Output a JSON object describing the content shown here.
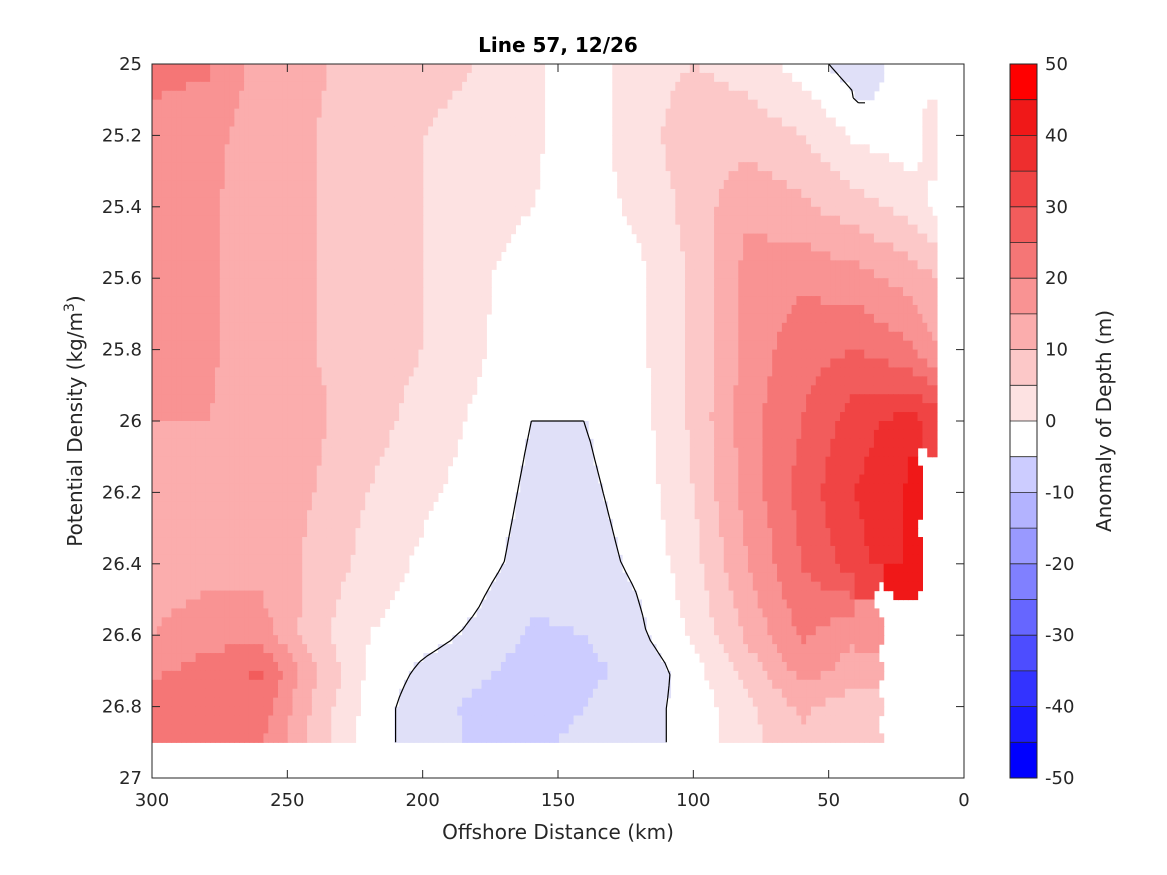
{
  "chart_data": {
    "type": "heatmap",
    "title": "Line 57, 12/26",
    "xlabel": "Offshore Distance (km)",
    "ylabel": "Potential Density (kg/m",
    "ylabel_sup": "3",
    "ylabel_end": ")",
    "xlim": [
      300,
      0
    ],
    "ylim": [
      25,
      27
    ],
    "x_reversed": true,
    "y_reversed": true,
    "grid": false,
    "x_ticks": [
      300,
      250,
      200,
      150,
      100,
      50,
      0
    ],
    "x_tick_labels": [
      "300",
      "250",
      "200",
      "150",
      "100",
      "50",
      "0"
    ],
    "y_ticks": [
      25,
      25.2,
      25.4,
      25.6,
      25.8,
      26,
      26.2,
      26.4,
      26.6,
      26.8,
      27
    ],
    "y_tick_labels": [
      "25",
      "25.2",
      "25.4",
      "25.6",
      "25.8",
      "26",
      "26.2",
      "26.4",
      "26.6",
      "26.8",
      "27"
    ],
    "colorbar": {
      "label": "Anomaly of Depth (m)",
      "range": [
        -50,
        50
      ],
      "ticks": [
        50,
        40,
        30,
        20,
        10,
        0,
        -10,
        -20,
        -30,
        -40,
        -50
      ],
      "tick_labels": [
        "50",
        "40",
        "30",
        "20",
        "10",
        "0",
        "-10",
        "-20",
        "-30",
        "-40",
        "-50"
      ],
      "levels": [
        -50,
        -45,
        -40,
        -35,
        -30,
        -25,
        -20,
        -15,
        -10,
        -5,
        0,
        5,
        10,
        15,
        20,
        25,
        30,
        35,
        40,
        45,
        50
      ],
      "colors": [
        "#0000ff",
        "#1a1aff",
        "#3333ff",
        "#4d4dff",
        "#6666ff",
        "#8080ff",
        "#9999ff",
        "#b3b3ff",
        "#ccccff",
        "#e0e0f8",
        "#ffffff",
        "#fde2e2",
        "#fcc8c8",
        "#fbadad",
        "#f99393",
        "#f57676",
        "#f25c5c",
        "#f04444",
        "#ee2e2e",
        "#f01818",
        "#ff0000"
      ]
    },
    "x": [
      300,
      280,
      260,
      240,
      220,
      200,
      180,
      160,
      140,
      120,
      100,
      80,
      60,
      40,
      20,
      10
    ],
    "y": [
      25.0,
      25.2,
      25.4,
      25.6,
      25.8,
      26.0,
      26.2,
      26.4,
      26.6,
      26.7,
      26.8,
      26.9
    ],
    "z": [
      [
        26,
        26,
        18,
        16,
        12,
        11,
        10,
        6,
        2,
        8,
        10,
        8,
        3,
        -3,
        null,
        null
      ],
      [
        24,
        22,
        17,
        15,
        12,
        10,
        9,
        6,
        2,
        8,
        13,
        13,
        10,
        4,
        2,
        8
      ],
      [
        24,
        21,
        17,
        15,
        13,
        10,
        8,
        5,
        3,
        6,
        12,
        19,
        16,
        12,
        8,
        3
      ],
      [
        23,
        21,
        17,
        15,
        13,
        10,
        6,
        2,
        1,
        4,
        11,
        22,
        24,
        22,
        18,
        15
      ],
      [
        22,
        21,
        17,
        15,
        13,
        10,
        6,
        1,
        1,
        4,
        11,
        22,
        28,
        30,
        26,
        20
      ],
      [
        20,
        20,
        18,
        16,
        12,
        8,
        4,
        0,
        0,
        3,
        11,
        23,
        30,
        38,
        42,
        38
      ],
      [
        19,
        19,
        18,
        15,
        10,
        6,
        3,
        -1,
        -1,
        2,
        10,
        22,
        32,
        40,
        46,
        null
      ],
      [
        17,
        18,
        18,
        14,
        8,
        4,
        2,
        -2,
        -2,
        1,
        8,
        20,
        30,
        38,
        46,
        null
      ],
      [
        20,
        23,
        23,
        12,
        5,
        2,
        -1,
        -6,
        -5,
        -1,
        6,
        16,
        26,
        20,
        null,
        null
      ],
      [
        24,
        27,
        31,
        16,
        4,
        -1,
        -4,
        -7,
        -6,
        -4,
        3,
        12,
        22,
        18,
        null,
        null
      ],
      [
        27,
        30,
        28,
        14,
        3,
        -3,
        -6,
        -7,
        -5,
        -2,
        2,
        9,
        16,
        12,
        null,
        null
      ],
      [
        26,
        28,
        26,
        13,
        2,
        -2,
        -6,
        -6,
        -4,
        -2,
        2,
        8,
        14,
        10,
        null,
        null
      ]
    ]
  }
}
